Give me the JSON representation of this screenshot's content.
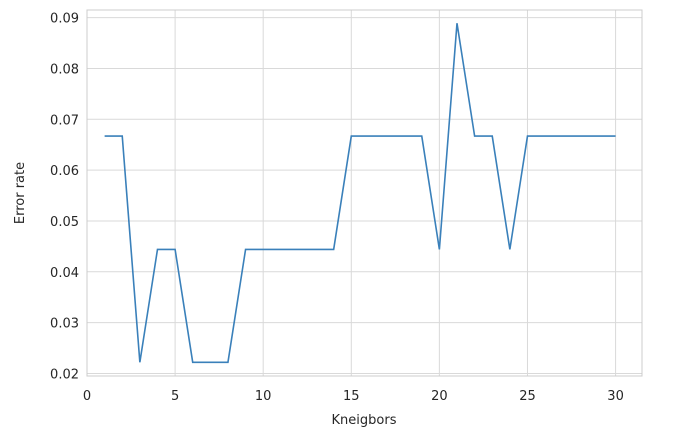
{
  "chart_data": {
    "type": "line",
    "title": "",
    "xlabel": "Kneigbors",
    "ylabel": "Error rate",
    "xlim": [
      0,
      31.5
    ],
    "ylim": [
      0.0195,
      0.0915
    ],
    "xticks": [
      0,
      5,
      10,
      15,
      20,
      25,
      30
    ],
    "xtick_labels": [
      "0",
      "5",
      "10",
      "15",
      "20",
      "25",
      "30"
    ],
    "yticks": [
      0.02,
      0.03,
      0.04,
      0.05,
      0.06,
      0.07,
      0.08,
      0.09
    ],
    "ytick_labels": [
      "0.02",
      "0.03",
      "0.04",
      "0.05",
      "0.06",
      "0.07",
      "0.08",
      "0.09"
    ],
    "grid": true,
    "series": [
      {
        "color": "#3a80ba",
        "x": [
          1,
          2,
          3,
          4,
          5,
          6,
          7,
          8,
          9,
          10,
          11,
          12,
          13,
          14,
          15,
          16,
          17,
          18,
          19,
          20,
          21,
          22,
          23,
          24,
          25,
          26,
          27,
          28,
          29,
          30
        ],
        "y": [
          0.0667,
          0.0667,
          0.0222,
          0.0444,
          0.0444,
          0.0222,
          0.0222,
          0.0222,
          0.0444,
          0.0444,
          0.0444,
          0.0444,
          0.0444,
          0.0444,
          0.0667,
          0.0667,
          0.0667,
          0.0667,
          0.0667,
          0.0444,
          0.0889,
          0.0667,
          0.0667,
          0.0444,
          0.0667,
          0.0667,
          0.0667,
          0.0667,
          0.0667,
          0.0667
        ]
      }
    ]
  }
}
